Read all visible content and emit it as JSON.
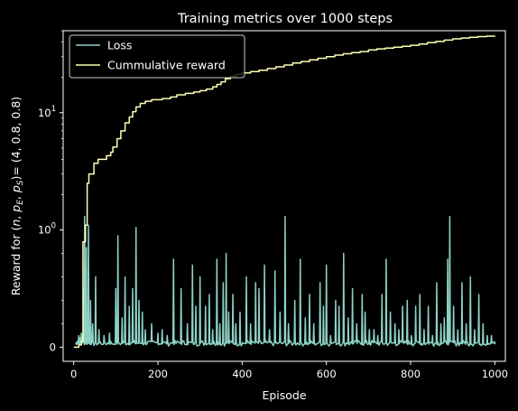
{
  "chart_data": {
    "type": "line",
    "title": "Training metrics over 1000 steps",
    "xlabel": "Episode",
    "ylabel": "Reward for (n, p_E, p_S)= (4, 0.8, 0.8)",
    "ylabel_parts": {
      "prefix": "Reward for (",
      "n": "n",
      "c1": ", ",
      "p1": "p",
      "s1": "E",
      "c2": ", ",
      "p2": "p",
      "s2": "S",
      "suffix": ")= (4, 0.8, 0.8)"
    },
    "xlim": [
      -25,
      1025
    ],
    "yscale": "symlog",
    "ylim": [
      -0.12,
      50
    ],
    "x_ticks": [
      0,
      200,
      400,
      600,
      800,
      1000
    ],
    "y_ticks": [
      {
        "value": 0,
        "base": "0",
        "exp": ""
      },
      {
        "value": 1,
        "base": "10",
        "exp": "0"
      },
      {
        "value": 10,
        "base": "10",
        "exp": "1"
      }
    ],
    "legend": {
      "position": "top-left"
    },
    "colors": {
      "background": "#000000",
      "axes": "#ffffff",
      "loss": "#8dd3c7",
      "reward": "#ffffb3"
    },
    "series": [
      {
        "name": "Loss",
        "color": "#8dd3c7",
        "spikes": [
          [
            5,
            0.03
          ],
          [
            8,
            0.05
          ],
          [
            12,
            0.1
          ],
          [
            15,
            0.08
          ],
          [
            18,
            0.12
          ],
          [
            20,
            0.1
          ],
          [
            24,
            0.5
          ],
          [
            26,
            1.3
          ],
          [
            30,
            0.85
          ],
          [
            35,
            1.1
          ],
          [
            40,
            0.4
          ],
          [
            45,
            0.2
          ],
          [
            52,
            0.6
          ],
          [
            60,
            0.15
          ],
          [
            72,
            0.1
          ],
          [
            85,
            0.12
          ],
          [
            100,
            0.5
          ],
          [
            105,
            0.95
          ],
          [
            115,
            0.25
          ],
          [
            122,
            0.6
          ],
          [
            132,
            0.35
          ],
          [
            140,
            0.5
          ],
          [
            148,
            1.05
          ],
          [
            155,
            0.4
          ],
          [
            163,
            0.3
          ],
          [
            170,
            0.15
          ],
          [
            185,
            0.2
          ],
          [
            200,
            0.12
          ],
          [
            210,
            0.15
          ],
          [
            222,
            0.1
          ],
          [
            237,
            0.75
          ],
          [
            255,
            0.5
          ],
          [
            270,
            0.2
          ],
          [
            282,
            0.7
          ],
          [
            290,
            0.35
          ],
          [
            300,
            0.6
          ],
          [
            313,
            0.35
          ],
          [
            322,
            0.45
          ],
          [
            330,
            0.15
          ],
          [
            340,
            0.75
          ],
          [
            347,
            0.2
          ],
          [
            355,
            0.55
          ],
          [
            362,
            0.8
          ],
          [
            368,
            0.3
          ],
          [
            378,
            0.45
          ],
          [
            385,
            0.2
          ],
          [
            395,
            0.3
          ],
          [
            410,
            0.6
          ],
          [
            420,
            0.2
          ],
          [
            432,
            0.55
          ],
          [
            440,
            0.5
          ],
          [
            453,
            0.7
          ],
          [
            465,
            0.15
          ],
          [
            478,
            0.65
          ],
          [
            490,
            0.3
          ],
          [
            502,
            1.3
          ],
          [
            510,
            0.2
          ],
          [
            525,
            0.4
          ],
          [
            538,
            0.75
          ],
          [
            550,
            0.25
          ],
          [
            560,
            0.45
          ],
          [
            570,
            0.2
          ],
          [
            585,
            0.55
          ],
          [
            593,
            0.35
          ],
          [
            600,
            0.7
          ],
          [
            610,
            0.1
          ],
          [
            622,
            0.4
          ],
          [
            630,
            0.35
          ],
          [
            641,
            0.8
          ],
          [
            652,
            0.25
          ],
          [
            662,
            0.5
          ],
          [
            672,
            0.2
          ],
          [
            685,
            0.45
          ],
          [
            692,
            0.3
          ],
          [
            702,
            0.15
          ],
          [
            713,
            0.15
          ],
          [
            722,
            0.1
          ],
          [
            732,
            0.45
          ],
          [
            742,
            0.75
          ],
          [
            752,
            0.3
          ],
          [
            763,
            0.2
          ],
          [
            772,
            0.15
          ],
          [
            781,
            0.35
          ],
          [
            792,
            0.4
          ],
          [
            802,
            0.1
          ],
          [
            812,
            0.35
          ],
          [
            822,
            0.45
          ],
          [
            832,
            0.15
          ],
          [
            842,
            0.35
          ],
          [
            852,
            0.1
          ],
          [
            862,
            0.55
          ],
          [
            872,
            0.2
          ],
          [
            880,
            0.25
          ],
          [
            888,
            0.75
          ],
          [
            893,
            1.3
          ],
          [
            902,
            0.35
          ],
          [
            912,
            0.15
          ],
          [
            922,
            0.55
          ],
          [
            932,
            0.2
          ],
          [
            942,
            0.6
          ],
          [
            952,
            0.15
          ],
          [
            962,
            0.45
          ],
          [
            972,
            0.2
          ],
          [
            982,
            0.1
          ],
          [
            992,
            0.1
          ],
          [
            1000,
            0.03
          ]
        ]
      },
      {
        "name": "Cummulative reward",
        "color": "#ffffb3",
        "points": [
          [
            0,
            0
          ],
          [
            5,
            0
          ],
          [
            12,
            0.02
          ],
          [
            18,
            0.05
          ],
          [
            22,
            0.9
          ],
          [
            28,
            1.1
          ],
          [
            32,
            2.5
          ],
          [
            36,
            3.0
          ],
          [
            48,
            3.7
          ],
          [
            58,
            4.0
          ],
          [
            78,
            4.3
          ],
          [
            88,
            4.6
          ],
          [
            93,
            5.1
          ],
          [
            103,
            6.0
          ],
          [
            112,
            7.0
          ],
          [
            122,
            8.2
          ],
          [
            132,
            9.2
          ],
          [
            140,
            10.2
          ],
          [
            148,
            11.2
          ],
          [
            158,
            12.0
          ],
          [
            170,
            12.5
          ],
          [
            185,
            12.9
          ],
          [
            210,
            13.2
          ],
          [
            230,
            13.6
          ],
          [
            245,
            14.2
          ],
          [
            265,
            14.6
          ],
          [
            285,
            15.0
          ],
          [
            300,
            15.4
          ],
          [
            315,
            15.9
          ],
          [
            330,
            16.6
          ],
          [
            340,
            17.4
          ],
          [
            350,
            18.3
          ],
          [
            360,
            19.5
          ],
          [
            372,
            20.4
          ],
          [
            385,
            21.2
          ],
          [
            400,
            21.8
          ],
          [
            420,
            22.4
          ],
          [
            440,
            23.0
          ],
          [
            460,
            23.8
          ],
          [
            480,
            24.6
          ],
          [
            500,
            25.5
          ],
          [
            520,
            26.5
          ],
          [
            540,
            27.3
          ],
          [
            560,
            28.2
          ],
          [
            580,
            29.1
          ],
          [
            600,
            30.0
          ],
          [
            620,
            31.0
          ],
          [
            640,
            31.8
          ],
          [
            660,
            32.5
          ],
          [
            680,
            33.2
          ],
          [
            700,
            34.3
          ],
          [
            720,
            35.0
          ],
          [
            740,
            35.5
          ],
          [
            760,
            36.2
          ],
          [
            780,
            36.8
          ],
          [
            800,
            37.6
          ],
          [
            820,
            38.5
          ],
          [
            840,
            39.6
          ],
          [
            860,
            40.5
          ],
          [
            880,
            41.6
          ],
          [
            900,
            42.6
          ],
          [
            920,
            43.3
          ],
          [
            940,
            44.0
          ],
          [
            960,
            44.6
          ],
          [
            980,
            45.0
          ],
          [
            1000,
            45.3
          ]
        ]
      }
    ]
  }
}
